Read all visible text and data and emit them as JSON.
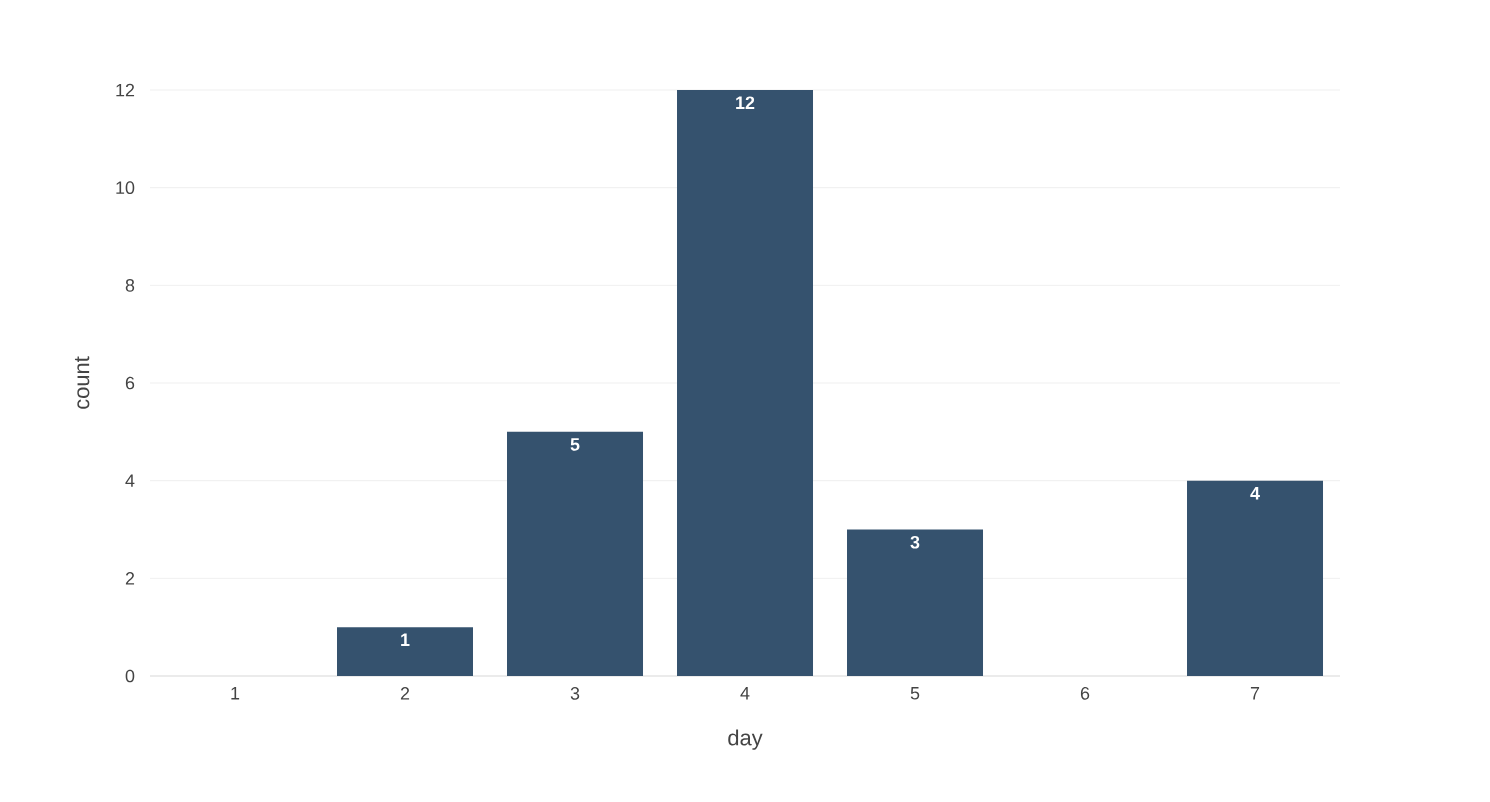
{
  "chart_data": {
    "type": "bar",
    "xlabel": "day",
    "ylabel": "count",
    "categories": [
      "1",
      "2",
      "3",
      "4",
      "5",
      "6",
      "7"
    ],
    "values": [
      0,
      1,
      5,
      12,
      3,
      0,
      4
    ],
    "value_labels": [
      null,
      "1",
      "5",
      "12",
      "3",
      null,
      "4"
    ],
    "color": "#35526e",
    "ylim": [
      0,
      12
    ],
    "yticks": [
      0,
      2,
      4,
      6,
      8,
      10,
      12
    ],
    "grid": "y"
  }
}
